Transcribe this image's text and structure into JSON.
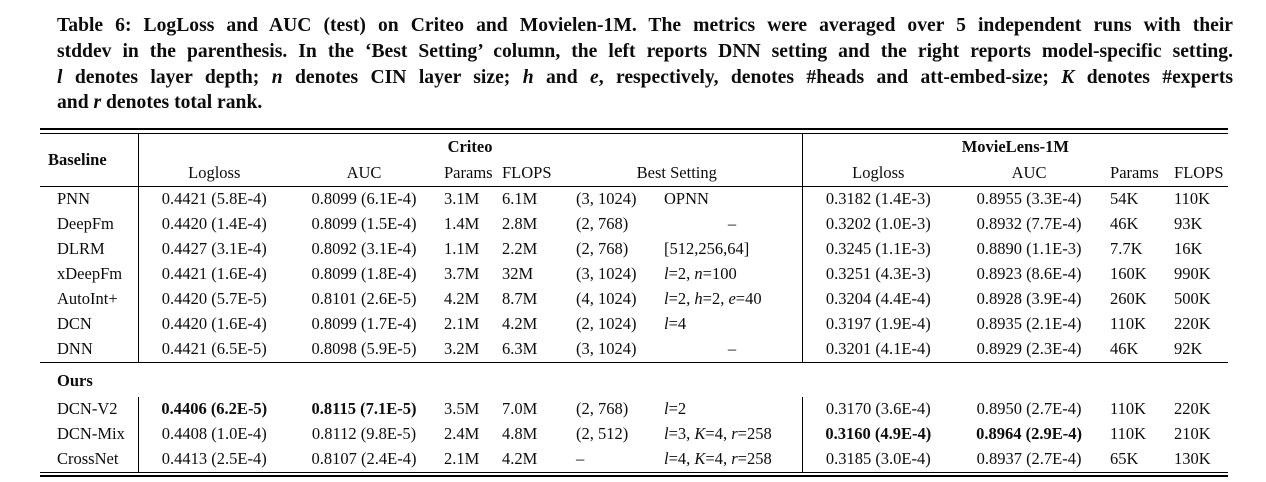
{
  "caption": {
    "lines": [
      "Table 6: LogLoss and AUC (test) on Criteo and Movielen-1M. The metrics were averaged over 5 independent runs with their",
      "stddev in the parenthesis. In the ‘Best Setting’ column, the left reports DNN setting and the right reports model-specific setting.",
      "l denotes layer depth; n denotes CIN layer size; h and e, respectively, denotes #heads and att-embed-size; K denotes #experts",
      "and r denotes total rank."
    ]
  },
  "table": {
    "headers": {
      "baseline": "Baseline",
      "criteo_group": "Criteo",
      "movielens_group": "MovieLens-1M",
      "logloss": "Logloss",
      "auc": "AUC",
      "params": "Params",
      "flops": "FLOPS",
      "best_setting": "Best Setting"
    },
    "dash": "–",
    "groups": [
      {
        "label": null,
        "rows": [
          {
            "name": "PNN",
            "c_logloss": "0.4421 (5.8E-4)",
            "c_auc": "0.8099 (6.1E-4)",
            "c_params": "3.1M",
            "c_flops": "6.1M",
            "bs_dnn": "(3, 1024)",
            "bs_model": "OPNN",
            "m_logloss": "0.3182 (1.4E-3)",
            "m_auc": "0.8955 (3.3E-4)",
            "m_params": "54K",
            "m_flops": "110K",
            "best_criteo": false,
            "best_ml": false
          },
          {
            "name": "DeepFm",
            "c_logloss": "0.4420 (1.4E-4)",
            "c_auc": "0.8099 (1.5E-4)",
            "c_params": "1.4M",
            "c_flops": "2.8M",
            "bs_dnn": "(2, 768)",
            "bs_model": "–",
            "m_logloss": "0.3202 (1.0E-3)",
            "m_auc": "0.8932 (7.7E-4)",
            "m_params": "46K",
            "m_flops": "93K",
            "best_criteo": false,
            "best_ml": false
          },
          {
            "name": "DLRM",
            "c_logloss": "0.4427 (3.1E-4)",
            "c_auc": "0.8092 (3.1E-4)",
            "c_params": "1.1M",
            "c_flops": "2.2M",
            "bs_dnn": "(2, 768)",
            "bs_model": "[512,256,64]",
            "m_logloss": "0.3245 (1.1E-3)",
            "m_auc": "0.8890 (1.1E-3)",
            "m_params": "7.7K",
            "m_flops": "16K",
            "best_criteo": false,
            "best_ml": false
          },
          {
            "name": "xDeepFm",
            "c_logloss": "0.4421 (1.6E-4)",
            "c_auc": "0.8099 (1.8E-4)",
            "c_params": "3.7M",
            "c_flops": "32M",
            "bs_dnn": "(3, 1024)",
            "bs_model": "l=2, n=100",
            "m_logloss": "0.3251 (4.3E-3)",
            "m_auc": "0.8923 (8.6E-4)",
            "m_params": "160K",
            "m_flops": "990K",
            "best_criteo": false,
            "best_ml": false
          },
          {
            "name": "AutoInt+",
            "c_logloss": "0.4420 (5.7E-5)",
            "c_auc": "0.8101 (2.6E-5)",
            "c_params": "4.2M",
            "c_flops": "8.7M",
            "bs_dnn": "(4, 1024)",
            "bs_model": "l=2, h=2, e=40",
            "m_logloss": "0.3204 (4.4E-4)",
            "m_auc": "0.8928 (3.9E-4)",
            "m_params": "260K",
            "m_flops": "500K",
            "best_criteo": false,
            "best_ml": false
          },
          {
            "name": "DCN",
            "c_logloss": "0.4420 (1.6E-4)",
            "c_auc": "0.8099 (1.7E-4)",
            "c_params": "2.1M",
            "c_flops": "4.2M",
            "bs_dnn": "(2, 1024)",
            "bs_model": "l=4",
            "m_logloss": "0.3197 (1.9E-4)",
            "m_auc": "0.8935 (2.1E-4)",
            "m_params": "110K",
            "m_flops": "220K",
            "best_criteo": false,
            "best_ml": false
          },
          {
            "name": "DNN",
            "c_logloss": "0.4421 (6.5E-5)",
            "c_auc": "0.8098 (5.9E-5)",
            "c_params": "3.2M",
            "c_flops": "6.3M",
            "bs_dnn": "(3, 1024)",
            "bs_model": "–",
            "m_logloss": "0.3201 (4.1E-4)",
            "m_auc": "0.8929 (2.3E-4)",
            "m_params": "46K",
            "m_flops": "92K",
            "best_criteo": false,
            "best_ml": false
          }
        ]
      },
      {
        "label": "Ours",
        "rows": [
          {
            "name": "DCN-V2",
            "c_logloss": "0.4406 (6.2E-5)",
            "c_auc": "0.8115 (7.1E-5)",
            "c_params": "3.5M",
            "c_flops": "7.0M",
            "bs_dnn": "(2, 768)",
            "bs_model": "l=2",
            "m_logloss": "0.3170 (3.6E-4)",
            "m_auc": "0.8950 (2.7E-4)",
            "m_params": "110K",
            "m_flops": "220K",
            "best_criteo": true,
            "best_ml": false
          },
          {
            "name": "DCN-Mix",
            "c_logloss": "0.4408 (1.0E-4)",
            "c_auc": "0.8112 (9.8E-5)",
            "c_params": "2.4M",
            "c_flops": "4.8M",
            "bs_dnn": "(2, 512)",
            "bs_model": "l=3, K=4, r=258",
            "m_logloss": "0.3160 (4.9E-4)",
            "m_auc": "0.8964 (2.9E-4)",
            "m_params": "110K",
            "m_flops": "210K",
            "best_criteo": false,
            "best_ml": true
          },
          {
            "name": "CrossNet",
            "c_logloss": "0.4413 (2.5E-4)",
            "c_auc": "0.8107 (2.4E-4)",
            "c_params": "2.1M",
            "c_flops": "4.2M",
            "bs_dnn": "–",
            "bs_model": "l=4, K=4, r=258",
            "m_logloss": "0.3185 (3.0E-4)",
            "m_auc": "0.8937 (2.7E-4)",
            "m_params": "65K",
            "m_flops": "130K",
            "best_criteo": false,
            "best_ml": false
          }
        ]
      }
    ]
  },
  "colors": {
    "text": "#0c0c0c",
    "rule": "#000000",
    "background": "#ffffff"
  }
}
